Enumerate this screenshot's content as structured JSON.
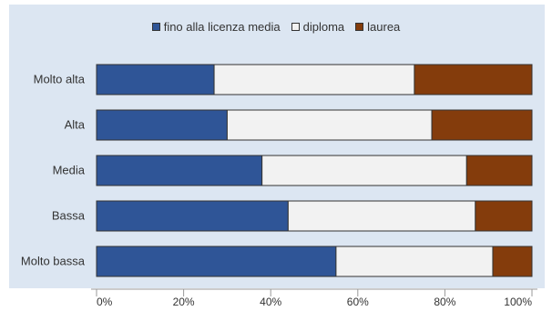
{
  "colors": {
    "background": "#dce6f2",
    "series": [
      "#2f5597",
      "#f2f2f2",
      "#843c0c"
    ],
    "outline": "#333333",
    "axis": "#999999"
  },
  "chart_data": {
    "type": "bar",
    "orientation": "horizontal",
    "stacked": "percent",
    "categories": [
      "Molto alta",
      "Alta",
      "Media",
      "Bassa",
      "Molto bassa"
    ],
    "series": [
      {
        "name": "fino alla licenza media",
        "values": [
          27,
          30,
          38,
          44,
          55
        ]
      },
      {
        "name": "diploma",
        "values": [
          46,
          47,
          47,
          43,
          36
        ]
      },
      {
        "name": "laurea",
        "values": [
          27,
          23,
          15,
          13,
          9
        ]
      }
    ],
    "xlim": [
      0,
      100
    ],
    "x_ticks": [
      "0%",
      "20%",
      "40%",
      "60%",
      "80%",
      "100%"
    ],
    "grid": false,
    "legend_position": "top"
  }
}
